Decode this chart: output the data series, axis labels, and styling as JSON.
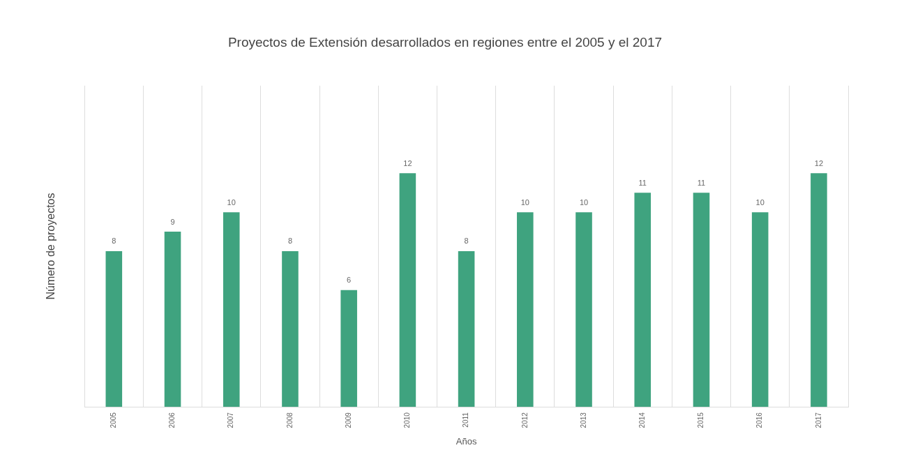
{
  "chart_data": {
    "type": "bar",
    "title": "Proyectos de Extensión desarrollados en regiones entre el 2005 y el 2017",
    "xlabel": "Años",
    "ylabel": "Número de proyectos",
    "categories": [
      "2005",
      "2006",
      "2007",
      "2008",
      "2009",
      "2010",
      "2011",
      "2012",
      "2013",
      "2014",
      "2015",
      "2016",
      "2017"
    ],
    "values": [
      8,
      9,
      10,
      8,
      6,
      12,
      8,
      10,
      10,
      11,
      11,
      10,
      12
    ],
    "color": "#3fa37f",
    "ylim": [
      0,
      16.5
    ],
    "tick_labels": "x",
    "grid": "x",
    "data_labels": true,
    "legend": false
  }
}
